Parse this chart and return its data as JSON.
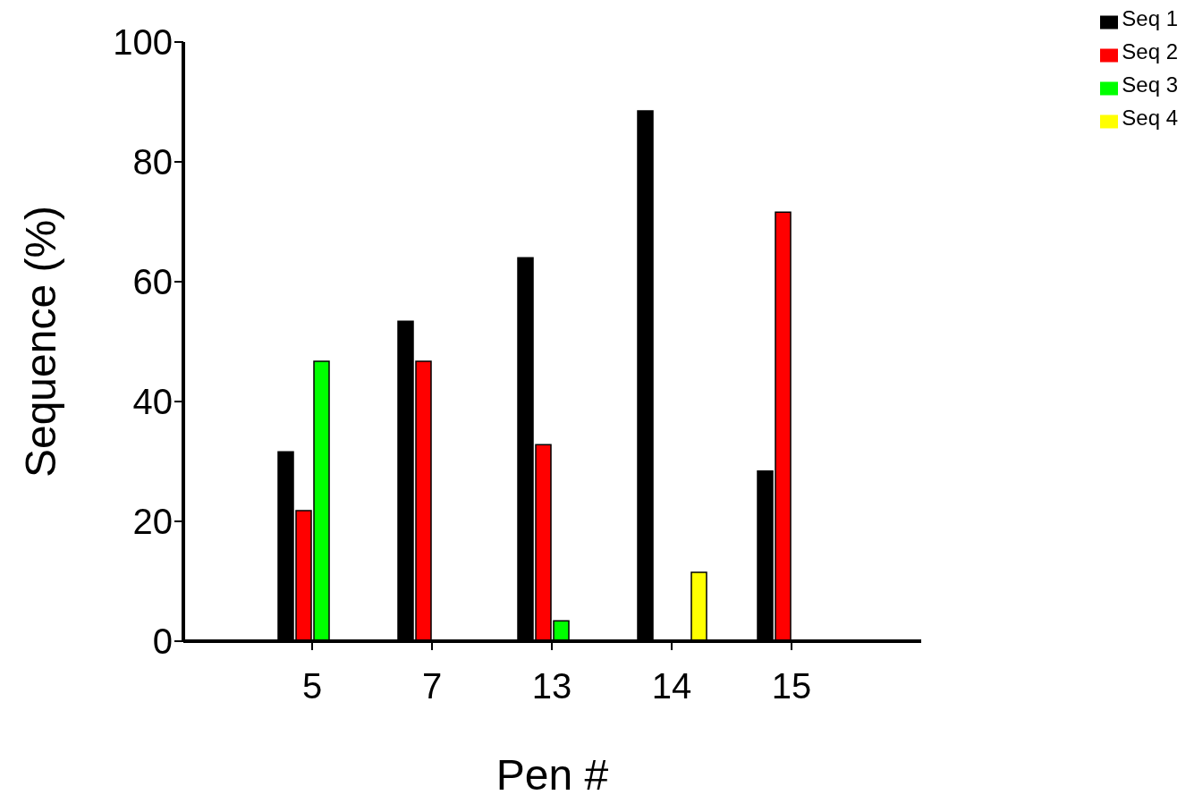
{
  "chart_data": {
    "type": "bar",
    "xlabel": "Pen #",
    "ylabel": "Sequence (%)",
    "categories": [
      "5",
      "7",
      "13",
      "14",
      "15"
    ],
    "series": [
      {
        "name": "Seq 1",
        "color": "#000000",
        "values": [
          31.6,
          53.4,
          64.0,
          88.5,
          28.4
        ]
      },
      {
        "name": "Seq 2",
        "color": "#ff0000",
        "values": [
          21.8,
          46.7,
          32.8,
          null,
          71.6
        ]
      },
      {
        "name": "Seq 3",
        "color": "#00ff00",
        "values": [
          46.7,
          null,
          3.4,
          null,
          null
        ]
      },
      {
        "name": "Seq 4",
        "color": "#ffff00",
        "values": [
          null,
          null,
          null,
          11.5,
          null
        ]
      }
    ],
    "ylim": [
      0,
      100
    ],
    "yticks": [
      0,
      20,
      40,
      60,
      80,
      100
    ],
    "grid": false,
    "legend": "top right"
  }
}
